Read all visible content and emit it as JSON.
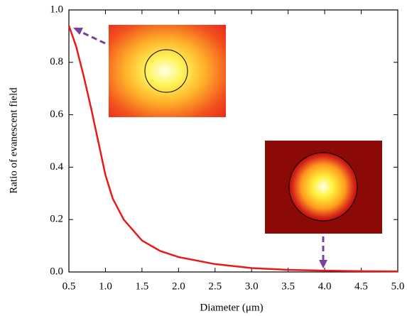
{
  "chart_data": {
    "type": "line",
    "x_label": "Diameter (μm)",
    "y_label": "Ratio of evanescent field",
    "x": [
      0.5,
      0.6,
      0.7,
      0.8,
      0.9,
      1.0,
      1.1,
      1.25,
      1.5,
      1.75,
      2.0,
      2.5,
      3.0,
      3.5,
      4.0,
      4.5,
      5.0
    ],
    "values": [
      0.94,
      0.86,
      0.75,
      0.63,
      0.5,
      0.37,
      0.28,
      0.2,
      0.12,
      0.08,
      0.057,
      0.03,
      0.015,
      0.008,
      0.005,
      0.003,
      0.002
    ],
    "color": "#e8191b",
    "xlim": [
      0.5,
      5.0
    ],
    "ylim": [
      0,
      1.0
    ],
    "xticks": [
      0.5,
      {
        "value": 1,
        "label": "1.0"
      },
      1.5,
      {
        "value": 2,
        "label": "2.0"
      },
      2.5,
      {
        "value": 3,
        "label": "3.0"
      },
      3.5,
      {
        "value": 4,
        "label": "4.0"
      },
      4.5,
      {
        "value": 5,
        "label": "5.0"
      }
    ],
    "yticks": [
      {
        "value": 0,
        "label": "0.0"
      },
      0.2,
      0.4,
      0.6,
      0.8,
      {
        "value": 1,
        "label": "1.0"
      }
    ]
  }
}
